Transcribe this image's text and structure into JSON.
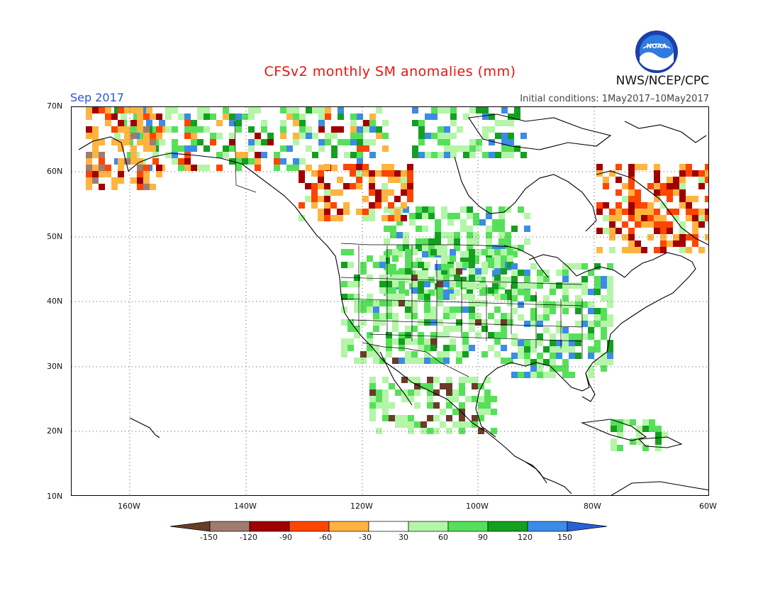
{
  "header": {
    "title": "CFSv2 monthly SM anomalies (mm)",
    "period": "Sep 2017",
    "initial_conditions": "Initial conditions: 1May2017–10May2017",
    "agency": "NWS/NCEP/CPC",
    "logo_text": "NOAA"
  },
  "axes": {
    "lat_labels": [
      "70N",
      "60N",
      "50N",
      "40N",
      "30N",
      "20N",
      "10N"
    ],
    "lon_labels": [
      "160W",
      "140W",
      "120W",
      "100W",
      "80W",
      "60W"
    ],
    "lat_range": [
      10,
      70
    ],
    "lon_range": [
      -170,
      -60
    ]
  },
  "legend": {
    "labels": [
      "-150",
      "-120",
      "-90",
      "-60",
      "-30",
      "30",
      "60",
      "90",
      "120",
      "150"
    ],
    "colors": [
      "#6b3b2a",
      "#a07c70",
      "#a00000",
      "#ff4500",
      "#ffb440",
      "#ffffff",
      "#b4f5a8",
      "#56e05a",
      "#13a020",
      "#3c8be6",
      "#2860d8"
    ]
  },
  "colors": {
    "title": "#e8140f",
    "period": "#2b54d6"
  }
}
